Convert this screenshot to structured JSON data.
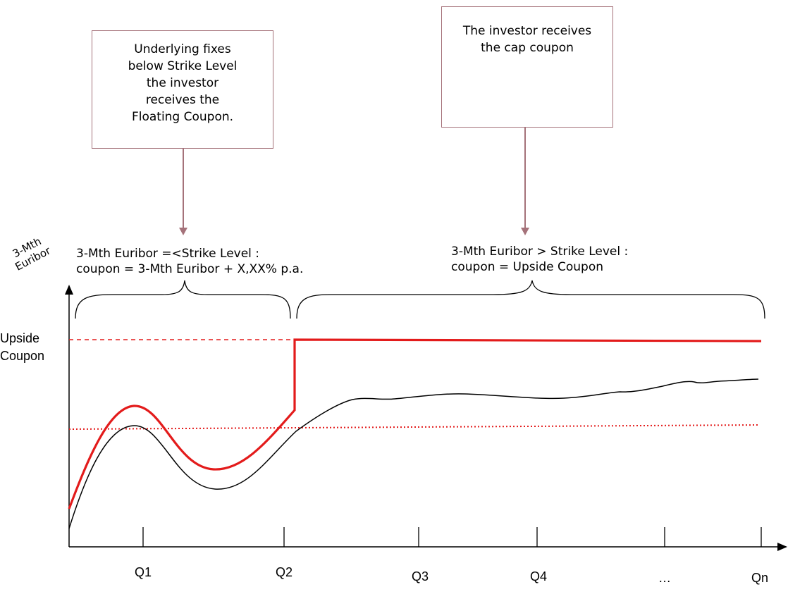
{
  "callouts": [
    {
      "lines": [
        "Underlying fixes",
        "below Strike Level",
        "the investor",
        "receives the",
        "Floating  Coupon."
      ]
    },
    {
      "lines": [
        "The investor receives",
        "the cap coupon"
      ]
    }
  ],
  "conditions": [
    {
      "lines": [
        "3-Mth Euribor =<Strike Level :",
        "coupon = 3-Mth Euribor + X,XX% p.a."
      ]
    },
    {
      "lines": [
        "3-Mth Euribor > Strike Level :",
        "coupon = Upside Coupon"
      ]
    }
  ],
  "y_axis": {
    "title_lines": [
      "3-Mth",
      "Euribor"
    ],
    "upside_label_lines": [
      "Upside",
      "Coupon"
    ]
  },
  "x_ticks": [
    "Q1",
    "Q2",
    "Q3",
    "Q4",
    "…",
    "Qn"
  ],
  "colors": {
    "callout_border": "#a5727a",
    "arrow": "#a5727a",
    "coupon_line": "#e31b1b",
    "euribor_line": "#000000",
    "strike_line": "#e31b1b",
    "cap_line": "#e31b1b"
  }
}
